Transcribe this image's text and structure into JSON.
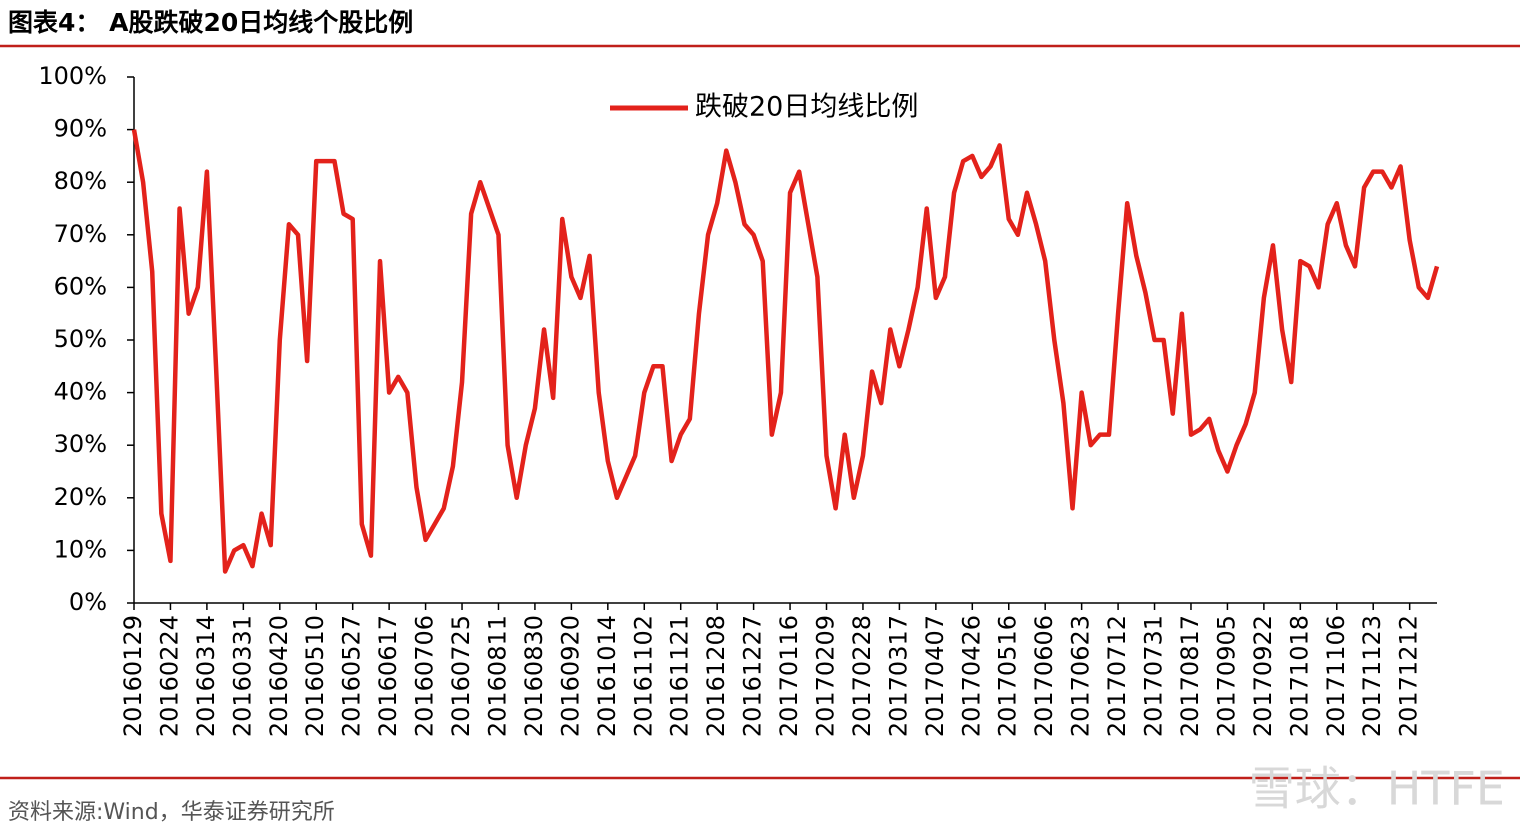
{
  "chart_data": {
    "type": "line",
    "title": "图表4：  A股跌破20日均线个股比例",
    "source": "资料来源:Wind，华泰证券研究所",
    "watermark": "雪球：HTFE",
    "legend": "top",
    "categories": [
      "20160129",
      null,
      null,
      null,
      "20160224",
      null,
      null,
      null,
      "20160314",
      null,
      null,
      null,
      "20160331",
      null,
      null,
      null,
      "20160420",
      null,
      null,
      null,
      "20160510",
      null,
      null,
      null,
      "20160527",
      null,
      null,
      null,
      "20160617",
      null,
      null,
      null,
      "20160706",
      null,
      null,
      null,
      "20160725",
      null,
      null,
      null,
      "20160811",
      null,
      null,
      null,
      "20160830",
      null,
      null,
      null,
      "20160920",
      null,
      null,
      null,
      "20161014",
      null,
      null,
      null,
      "20161102",
      null,
      null,
      null,
      "20161121",
      null,
      null,
      null,
      "20161208",
      null,
      null,
      null,
      "20161227",
      null,
      null,
      null,
      "20170116",
      null,
      null,
      null,
      "20170209",
      null,
      null,
      null,
      "20170228",
      null,
      null,
      null,
      "20170317",
      null,
      null,
      null,
      "20170407",
      null,
      null,
      null,
      "20170426",
      null,
      null,
      null,
      "20170516",
      null,
      null,
      null,
      "20170606",
      null,
      null,
      null,
      "20170623",
      null,
      null,
      null,
      "20170712",
      null,
      null,
      null,
      "20170731",
      null,
      null,
      null,
      "20170817",
      null,
      null,
      null,
      "20170905",
      null,
      null,
      null,
      "20170922",
      null,
      null,
      null,
      "20171018",
      null,
      null,
      null,
      "20171106",
      null,
      null,
      null,
      "20171123",
      null,
      null,
      null,
      "20171212",
      null,
      null,
      null
    ],
    "series": [
      {
        "name": "跌破20日均线比例",
        "color": "#e3221b",
        "values": [
          90,
          80,
          63,
          17,
          8,
          75,
          55,
          60,
          82,
          45,
          6,
          10,
          11,
          7,
          17,
          11,
          50,
          72,
          70,
          46,
          84,
          84,
          84,
          74,
          73,
          15,
          9,
          65,
          40,
          43,
          40,
          22,
          12,
          15,
          18,
          26,
          42,
          74,
          80,
          75,
          70,
          30,
          20,
          30,
          37,
          52,
          39,
          73,
          62,
          58,
          66,
          40,
          27,
          20,
          24,
          28,
          40,
          45,
          45,
          27,
          32,
          35,
          55,
          70,
          76,
          86,
          80,
          72,
          70,
          65,
          32,
          40,
          78,
          82,
          72,
          62,
          28,
          18,
          32,
          20,
          28,
          44,
          38,
          52,
          45,
          52,
          60,
          75,
          58,
          62,
          78,
          84,
          85,
          81,
          83,
          87,
          73,
          70,
          78,
          72,
          65,
          50,
          38,
          18,
          40,
          30,
          32,
          32,
          55,
          76,
          66,
          59,
          50,
          50,
          36,
          55,
          32,
          33,
          35,
          29,
          25,
          30,
          34,
          40,
          58,
          68,
          52,
          42,
          65,
          64,
          60,
          72,
          76,
          68,
          64,
          79,
          82,
          82,
          79,
          83,
          69,
          60,
          58,
          64
        ]
      }
    ],
    "ylim": [
      0,
      100
    ],
    "yticks": [
      {
        "value": 0,
        "label": "0%"
      },
      {
        "value": 10,
        "label": "10%"
      },
      {
        "value": 20,
        "label": "20%"
      },
      {
        "value": 30,
        "label": "30%"
      },
      {
        "value": 40,
        "label": "40%"
      },
      {
        "value": 50,
        "label": "50%"
      },
      {
        "value": 60,
        "label": "60%"
      },
      {
        "value": 70,
        "label": "70%"
      },
      {
        "value": 80,
        "label": "80%"
      },
      {
        "value": 90,
        "label": "90%"
      },
      {
        "value": 100,
        "label": "100%"
      }
    ],
    "grid": false
  }
}
